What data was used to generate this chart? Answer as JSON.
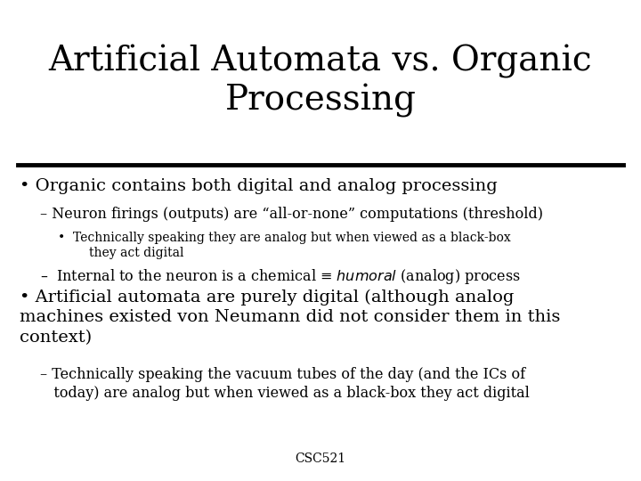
{
  "title_line1": "Artificial Automata vs. Organic",
  "title_line2": "Processing",
  "background_color": "#ffffff",
  "text_color": "#000000",
  "title_fontsize": 28,
  "body_fontsize": 14,
  "sub_fontsize": 11.5,
  "subsub_fontsize": 10,
  "footer_text": "CSC521",
  "footer_fontsize": 10,
  "bullet1": "Organic contains both digital and analog processing",
  "sub1a": "– Neuron firings (outputs) are “all-or-none” computations (threshold)",
  "subsub1a": "•  Technically speaking they are analog but when viewed as a black-box\n        they act digital",
  "sub1b_pre": "–  Internal to the neuron is a chemical ≡ ",
  "sub1b_italic": "humoral",
  "sub1b_post": " (analog) process",
  "bullet2": "Artificial automata are purely digital (although analog\nmachines existed von Neumann did not consider them in this\ncontext)",
  "sub2a": "– Technically speaking the vacuum tubes of the day (and the ICs of\n   today) are analog but when viewed as a black-box they act digital"
}
